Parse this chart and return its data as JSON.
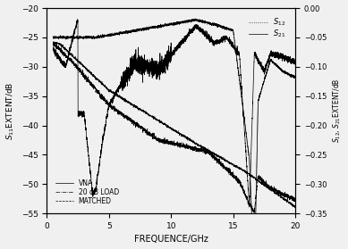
{
  "xlabel": "FREQUENCE/GHz",
  "ylabel_left": "$S_{11}$EXTENT/dB",
  "ylabel_right": "$S_{12}$, $S_{21}$EXTENT/dB",
  "xlim": [
    0,
    20
  ],
  "ylim_left": [
    -55,
    -20
  ],
  "ylim_right": [
    -0.35,
    0
  ],
  "yticks_left": [
    -55,
    -50,
    -45,
    -40,
    -35,
    -30,
    -25,
    -20
  ],
  "yticks_right": [
    -0.35,
    -0.3,
    -0.25,
    -0.2,
    -0.15,
    -0.1,
    -0.05,
    0
  ],
  "xticks": [
    0,
    5,
    10,
    15,
    20
  ],
  "legend_labels": [
    "VNA",
    "20 dB LOAD",
    "MATCHED"
  ],
  "legend_s_labels": [
    "$S_{12}$",
    "$S_{21}$"
  ],
  "background_color": "#f0f0f0"
}
